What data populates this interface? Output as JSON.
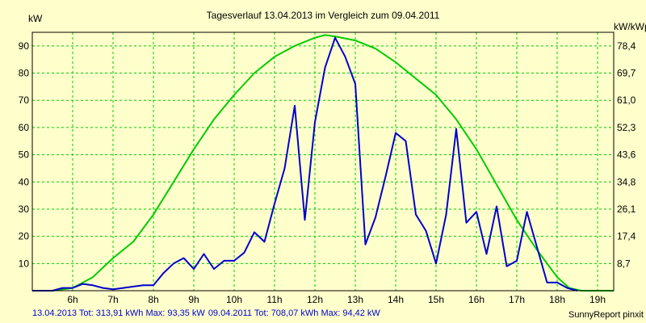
{
  "chart_data": {
    "type": "line",
    "title": "Tagesverlauf 13.04.2013 im Vergleich zum 09.04.2011",
    "ylabel_left": "kW",
    "ylabel_right": "kW/kWp [%]",
    "x_ticks": [
      "6h",
      "7h",
      "8h",
      "9h",
      "10h",
      "11h",
      "12h",
      "13h",
      "14h",
      "15h",
      "16h",
      "17h",
      "18h",
      "19h"
    ],
    "y_ticks_left": [
      "10",
      "20",
      "30",
      "40",
      "50",
      "60",
      "70",
      "80",
      "90"
    ],
    "y_ticks_right": [
      "8,7",
      "17,4",
      "26,1",
      "34,8",
      "43,6",
      "52,3",
      "61,0",
      "69,7",
      "78,4"
    ],
    "xlim": [
      5.0,
      19.4
    ],
    "ylim": [
      0,
      95
    ],
    "grid": true,
    "series": [
      {
        "name": "13.04.2013",
        "color": "#0000CC",
        "x": [
          5.0,
          5.5,
          5.75,
          6.0,
          6.25,
          6.5,
          6.75,
          7.0,
          7.25,
          7.5,
          7.75,
          8.0,
          8.25,
          8.5,
          8.75,
          9.0,
          9.25,
          9.5,
          9.75,
          10.0,
          10.25,
          10.5,
          10.75,
          11.0,
          11.25,
          11.5,
          11.75,
          12.0,
          12.25,
          12.5,
          12.75,
          13.0,
          13.25,
          13.5,
          13.75,
          14.0,
          14.25,
          14.5,
          14.75,
          15.0,
          15.25,
          15.5,
          15.75,
          16.0,
          16.25,
          16.5,
          16.75,
          17.0,
          17.25,
          17.5,
          17.75,
          18.0,
          18.25,
          18.5
        ],
        "y": [
          0,
          0,
          1,
          1,
          2.5,
          2,
          1,
          0.5,
          1,
          1.5,
          2,
          2,
          6.5,
          10,
          12,
          8,
          13.5,
          8,
          11,
          11,
          14,
          21.5,
          18,
          32,
          45,
          68,
          26,
          62,
          82,
          93,
          86,
          76,
          17,
          27,
          42,
          58,
          55,
          28,
          22,
          10,
          28,
          59.5,
          25,
          29,
          13.5,
          31,
          9,
          11,
          29,
          16,
          3,
          3,
          1,
          0
        ]
      },
      {
        "name": "09.04.2011",
        "color": "#00CC00",
        "x": [
          5.0,
          5.5,
          6.0,
          6.5,
          7.0,
          7.5,
          8.0,
          8.5,
          9.0,
          9.5,
          10.0,
          10.5,
          11.0,
          11.5,
          12.0,
          12.25,
          12.5,
          13.0,
          13.5,
          14.0,
          14.5,
          15.0,
          15.5,
          16.0,
          16.5,
          17.0,
          17.5,
          18.0,
          18.3,
          18.6,
          19.0,
          19.4
        ],
        "y": [
          0,
          0,
          1,
          5,
          12,
          18,
          28,
          40,
          52,
          63,
          72,
          80,
          86,
          90,
          93,
          94,
          93.5,
          92,
          89,
          84,
          78,
          72,
          63,
          52,
          39,
          26,
          15,
          5,
          1,
          0,
          0,
          0
        ]
      }
    ],
    "footer": {
      "s1_label": "13.04.2013 Tot: 313,91 kWh Max: 93,35 kW",
      "s2_label": "09.04.2011 Tot: 708,07 kWh Max: 94,42 kW"
    },
    "credit": "SunnyReport pinxit"
  }
}
